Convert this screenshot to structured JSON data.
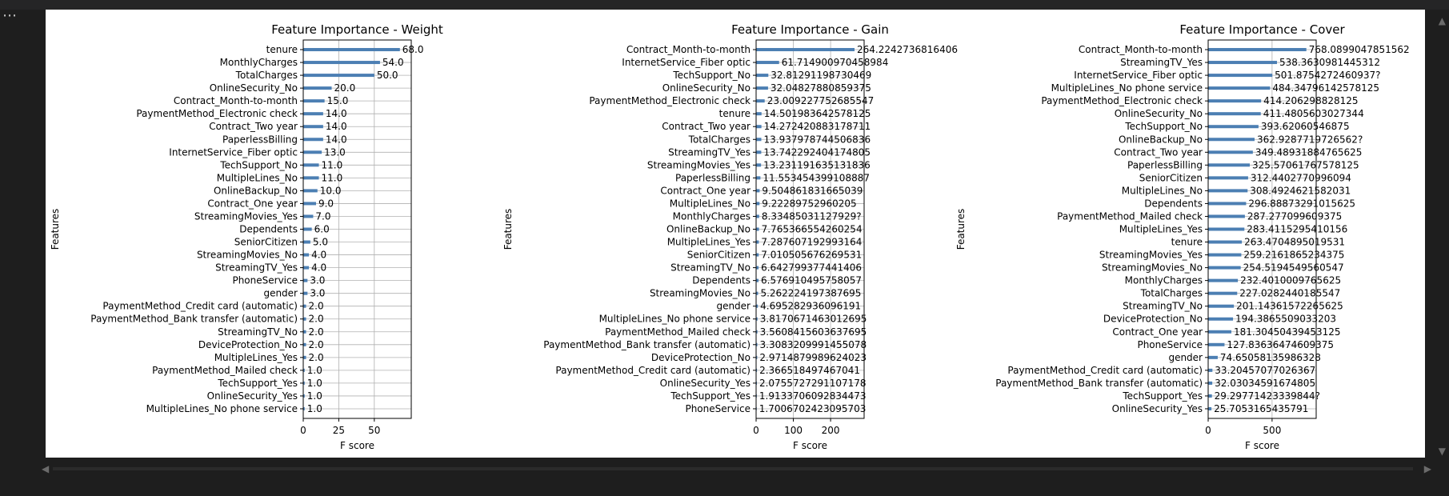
{
  "notebook": {
    "menu_glyph": "⋯",
    "scroll_up_glyph": "▲",
    "scroll_down_glyph": "▼",
    "scroll_left_glyph": "◀",
    "scroll_right_glyph": "▶"
  },
  "colors": {
    "bar": "#4c7fb3",
    "grid": "#b0b0b0",
    "axis": "#000000",
    "background": "#ffffff"
  },
  "chart_data": [
    {
      "type": "bar",
      "orientation": "horizontal",
      "title": "Feature Importance - Weight",
      "xlabel": "F score",
      "ylabel": "Features",
      "grid": true,
      "xlim": [
        0,
        76
      ],
      "xticks": [
        0,
        25,
        50
      ],
      "xtick_labels": [
        "0",
        "25",
        "50"
      ],
      "categories": [
        "tenure",
        "MonthlyCharges",
        "TotalCharges",
        "OnlineSecurity_No",
        "Contract_Month-to-month",
        "PaymentMethod_Electronic check",
        "Contract_Two year",
        "PaperlessBilling",
        "InternetService_Fiber optic",
        "TechSupport_No",
        "MultipleLines_No",
        "OnlineBackup_No",
        "Contract_One year",
        "StreamingMovies_Yes",
        "Dependents",
        "SeniorCitizen",
        "StreamingMovies_No",
        "StreamingTV_Yes",
        "PhoneService",
        "gender",
        "PaymentMethod_Credit card (automatic)",
        "PaymentMethod_Bank transfer (automatic)",
        "StreamingTV_No",
        "DeviceProtection_No",
        "MultipleLines_Yes",
        "PaymentMethod_Mailed check",
        "TechSupport_Yes",
        "OnlineSecurity_Yes",
        "MultipleLines_No phone service"
      ],
      "values": [
        68.0,
        54.0,
        50.0,
        20.0,
        15.0,
        14.0,
        14.0,
        14.0,
        13.0,
        11.0,
        11.0,
        10.0,
        9.0,
        7.0,
        6.0,
        5.0,
        4.0,
        4.0,
        3.0,
        3.0,
        2.0,
        2.0,
        2.0,
        2.0,
        2.0,
        1.0,
        1.0,
        1.0,
        1.0
      ],
      "value_labels": [
        "68.0",
        "54.0",
        "50.0",
        "20.0",
        "15.0",
        "14.0",
        "14.0",
        "14.0",
        "13.0",
        "11.0",
        "11.0",
        "10.0",
        "9.0",
        "7.0",
        "6.0",
        "5.0",
        "4.0",
        "4.0",
        "3.0",
        "3.0",
        "2.0",
        "2.0",
        "2.0",
        "2.0",
        "2.0",
        "1.0",
        "1.0",
        "1.0",
        "1.0"
      ]
    },
    {
      "type": "bar",
      "orientation": "horizontal",
      "title": "Feature Importance - Gain",
      "xlabel": "F score",
      "ylabel": "Features",
      "grid": true,
      "xlim": [
        0,
        290
      ],
      "xticks": [
        0,
        100,
        200
      ],
      "xtick_labels": [
        "0",
        "100",
        "200"
      ],
      "categories": [
        "Contract_Month-to-month",
        "InternetService_Fiber optic",
        "TechSupport_No",
        "OnlineSecurity_No",
        "PaymentMethod_Electronic check",
        "tenure",
        "Contract_Two year",
        "TotalCharges",
        "StreamingTV_Yes",
        "StreamingMovies_Yes",
        "PaperlessBilling",
        "Contract_One year",
        "MultipleLines_No",
        "MonthlyCharges",
        "OnlineBackup_No",
        "MultipleLines_Yes",
        "SeniorCitizen",
        "StreamingTV_No",
        "Dependents",
        "StreamingMovies_No",
        "gender",
        "MultipleLines_No phone service",
        "PaymentMethod_Mailed check",
        "PaymentMethod_Bank transfer (automatic)",
        "DeviceProtection_No",
        "PaymentMethod_Credit card (automatic)",
        "OnlineSecurity_Yes",
        "TechSupport_Yes",
        "PhoneService"
      ],
      "values": [
        264.2242736816406,
        61.714900970458984,
        32.81291198730469,
        32.04827880859375,
        23.009227752685547,
        14.501983642578125,
        14.272420883178711,
        13.937978744506836,
        13.742292404174805,
        13.231191635131836,
        11.553454399108887,
        9.504861831665039,
        9.22289752960205,
        8.33485031127929,
        7.765366554260254,
        7.287607192993164,
        7.010505676269531,
        6.642799377441406,
        6.576910495758057,
        5.262224197387695,
        4.695282936096191,
        3.8170671463012695,
        3.5608415603637695,
        3.308320999145508,
        2.9714879989624023,
        2.366518497467041,
        2.0755727291107178,
        1.9133706092834473,
        1.7006702423095703
      ],
      "value_labels": [
        "264.2242736816406",
        "61.714900970458984",
        "32.81291198730469",
        "32.04827880859375",
        "23.009227752685547",
        "14.501983642578125",
        "14.272420883178711",
        "13.937978744506836",
        "13.742292404174805",
        "13.231191635131836",
        "11.553454399108887",
        "9.504861831665039",
        "9.22289752960205",
        "8.33485031127929?",
        "7.765366554260254",
        "7.287607192993164",
        "7.010505676269531",
        "6.642799377441406",
        "6.576910495758057",
        "5.262224197387695",
        "4.695282936096191",
        "3.8170671463012695",
        "3.5608415603637695",
        "3.3083209991455078",
        "2.9714879989624023",
        "2.366518497467041",
        "2.0755727291107178",
        "1.9133706092834473",
        "1.7006702423095703"
      ]
    },
    {
      "type": "bar",
      "orientation": "horizontal",
      "title": "Feature Importance - Cover",
      "xlabel": "F score",
      "ylabel": "Features",
      "grid": true,
      "xlim": [
        0,
        845
      ],
      "xticks": [
        0,
        500
      ],
      "xtick_labels": [
        "0",
        "500"
      ],
      "categories": [
        "Contract_Month-to-month",
        "StreamingTV_Yes",
        "InternetService_Fiber optic",
        "MultipleLines_No phone service",
        "PaymentMethod_Electronic check",
        "OnlineSecurity_No",
        "TechSupport_No",
        "OnlineBackup_No",
        "Contract_Two year",
        "PaperlessBilling",
        "SeniorCitizen",
        "MultipleLines_No",
        "Dependents",
        "PaymentMethod_Mailed check",
        "MultipleLines_Yes",
        "tenure",
        "StreamingMovies_Yes",
        "StreamingMovies_No",
        "MonthlyCharges",
        "TotalCharges",
        "StreamingTV_No",
        "DeviceProtection_No",
        "Contract_One year",
        "PhoneService",
        "gender",
        "PaymentMethod_Credit card (automatic)",
        "PaymentMethod_Bank transfer (automatic)",
        "TechSupport_Yes",
        "OnlineSecurity_Yes"
      ],
      "values": [
        768.0899047851562,
        538.3630981445312,
        501.8754272460937,
        484.34796142578125,
        414.206298828125,
        411.4805603027344,
        393.62060546875,
        362.9287719726562,
        349.48931884765625,
        325.57061767578125,
        312.4402770996094,
        308.4924621582031,
        296.88873291015625,
        287.277099609375,
        283.4115295410156,
        263.4704895019531,
        259.2161865234375,
        254.5194549560547,
        232.4010009765625,
        227.0282440185547,
        201.14361572265625,
        194.3865509033203,
        181.30450439453125,
        127.83636474609375,
        74.65058135986328,
        33.20457077026367,
        32.03034591674805,
        29.29771423339844,
        25.7053165435791
      ],
      "value_labels": [
        "768.0899047851562",
        "538.3630981445312",
        "501.8754272460937?",
        "484.34796142578125",
        "414.206298828125",
        "411.4805603027344",
        "393.62060546875",
        "362.9287719726562?",
        "349.48931884765625",
        "325.57061767578125",
        "312.4402770996094",
        "308.4924621582031",
        "296.88873291015625",
        "287.277099609375",
        "283.4115295410156",
        "263.4704895019531",
        "259.2161865234375",
        "254.5194549560547",
        "232.4010009765625",
        "227.0282440185547",
        "201.14361572265625",
        "194.3865509033203",
        "181.30450439453125",
        "127.83636474609375",
        "74.65058135986328",
        "33.20457077026367",
        "32.03034591674805",
        "29.29771423339844?",
        "25.7053165435791"
      ]
    }
  ]
}
